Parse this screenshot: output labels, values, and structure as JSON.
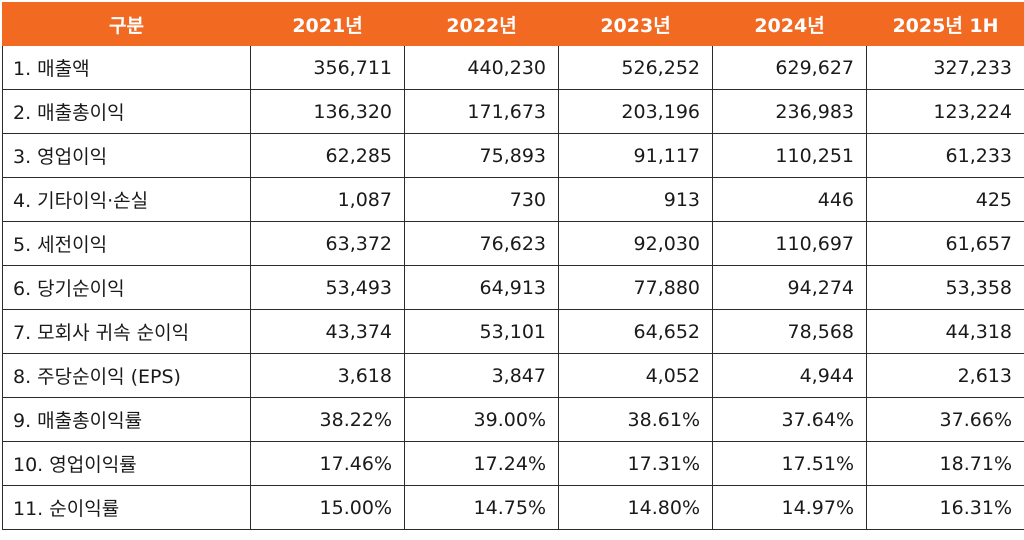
{
  "table": {
    "headers": [
      "구분",
      "2021년",
      "2022년",
      "2023년",
      "2024년",
      "2025년 1H"
    ],
    "rows": [
      [
        "1. 매출액",
        "356,711",
        "440,230",
        "526,252",
        "629,627",
        "327,233"
      ],
      [
        "2. 매출총이익",
        "136,320",
        "171,673",
        "203,196",
        "236,983",
        "123,224"
      ],
      [
        "3. 영업이익",
        "62,285",
        "75,893",
        "91,117",
        "110,251",
        "61,233"
      ],
      [
        "4. 기타이익·손실",
        "1,087",
        "730",
        "913",
        "446",
        "425"
      ],
      [
        "5. 세전이익",
        "63,372",
        "76,623",
        "92,030",
        "110,697",
        "61,657"
      ],
      [
        "6. 당기순이익",
        "53,493",
        "64,913",
        "77,880",
        "94,274",
        "53,358"
      ],
      [
        "7. 모회사 귀속 순이익",
        "43,374",
        "53,101",
        "64,652",
        "78,568",
        "44,318"
      ],
      [
        "8. 주당순이익 (EPS)",
        "3,618",
        "3,847",
        "4,052",
        "4,944",
        "2,613"
      ],
      [
        "9. 매출총이익률",
        "38.22%",
        "39.00%",
        "38.61%",
        "37.64%",
        "37.66%"
      ],
      [
        "10. 영업이익률",
        "17.46%",
        "17.24%",
        "17.31%",
        "17.51%",
        "18.71%"
      ],
      [
        "11. 순이익률",
        "15.00%",
        "14.75%",
        "14.80%",
        "14.97%",
        "16.31%"
      ]
    ]
  },
  "colors": {
    "header_bg": "#f26a21",
    "header_text": "#ffffff",
    "border": "#2b2b2b"
  }
}
